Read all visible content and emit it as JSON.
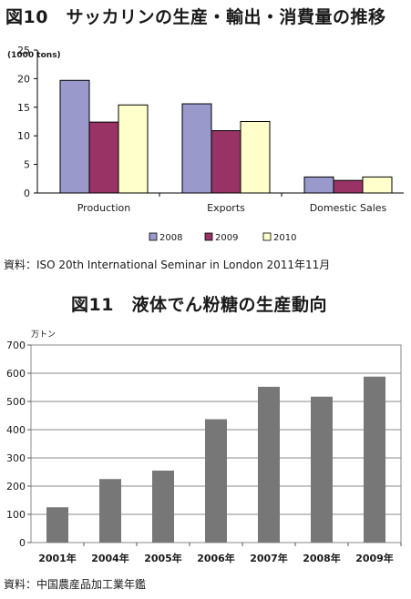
{
  "figure1": {
    "title": "図10　サッカリンの生産・輸出・消費量の推移",
    "source": "資料：ISO 20th International Seminar in London 2011年11月"
  },
  "figure2": {
    "title": "図11　液体でん粉糖の生産動向",
    "source": "資料：中国農産品加工業年鑑"
  },
  "chart_data": [
    {
      "type": "bar",
      "ylabel": "(1000 tons)",
      "categories": [
        "Production",
        "Exports",
        "Domestic Sales"
      ],
      "series": [
        {
          "name": "2008",
          "color": "#9999cc",
          "values": [
            19.7,
            15.6,
            2.8
          ]
        },
        {
          "name": "2009",
          "color": "#993366",
          "values": [
            12.4,
            10.9,
            2.2
          ]
        },
        {
          "name": "2010",
          "color": "#ffffcc",
          "values": [
            15.4,
            12.5,
            2.8
          ]
        }
      ],
      "ylim": [
        0,
        25
      ],
      "yticks": [
        0,
        5,
        10,
        15,
        20,
        25
      ],
      "legend": "bottom",
      "grid": false
    },
    {
      "type": "bar",
      "ylabel": "万トン",
      "categories": [
        "2001年",
        "2004年",
        "2005年",
        "2006年",
        "2007年",
        "2008年",
        "2009年"
      ],
      "values": [
        125,
        225,
        255,
        437,
        552,
        517,
        588
      ],
      "color": "#777777",
      "ylim": [
        0,
        700
      ],
      "yticks": [
        0,
        100,
        200,
        300,
        400,
        500,
        600,
        700
      ],
      "grid": true
    }
  ]
}
